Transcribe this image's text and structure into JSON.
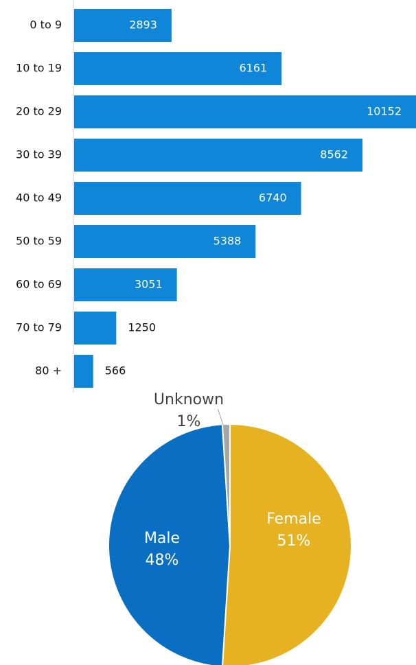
{
  "chart_data": [
    {
      "type": "hbar",
      "categories": [
        "0 to 9",
        "10 to 19",
        "20 to 29",
        "30 to 39",
        "40 to 49",
        "50 to 59",
        "60 to 69",
        "70 to 79",
        "80 +"
      ],
      "values": [
        2893,
        6161,
        10152,
        8562,
        6740,
        5388,
        3051,
        1250,
        566
      ],
      "color": "#0f86d8"
    },
    {
      "type": "pie",
      "categories": [
        "Female",
        "Male",
        "Unknown"
      ],
      "values": [
        51,
        48,
        1
      ],
      "value_labels": [
        "51%",
        "48%",
        "1%"
      ],
      "colors": [
        "#e6b222",
        "#0a6fc2",
        "#a6a6a6"
      ]
    }
  ]
}
